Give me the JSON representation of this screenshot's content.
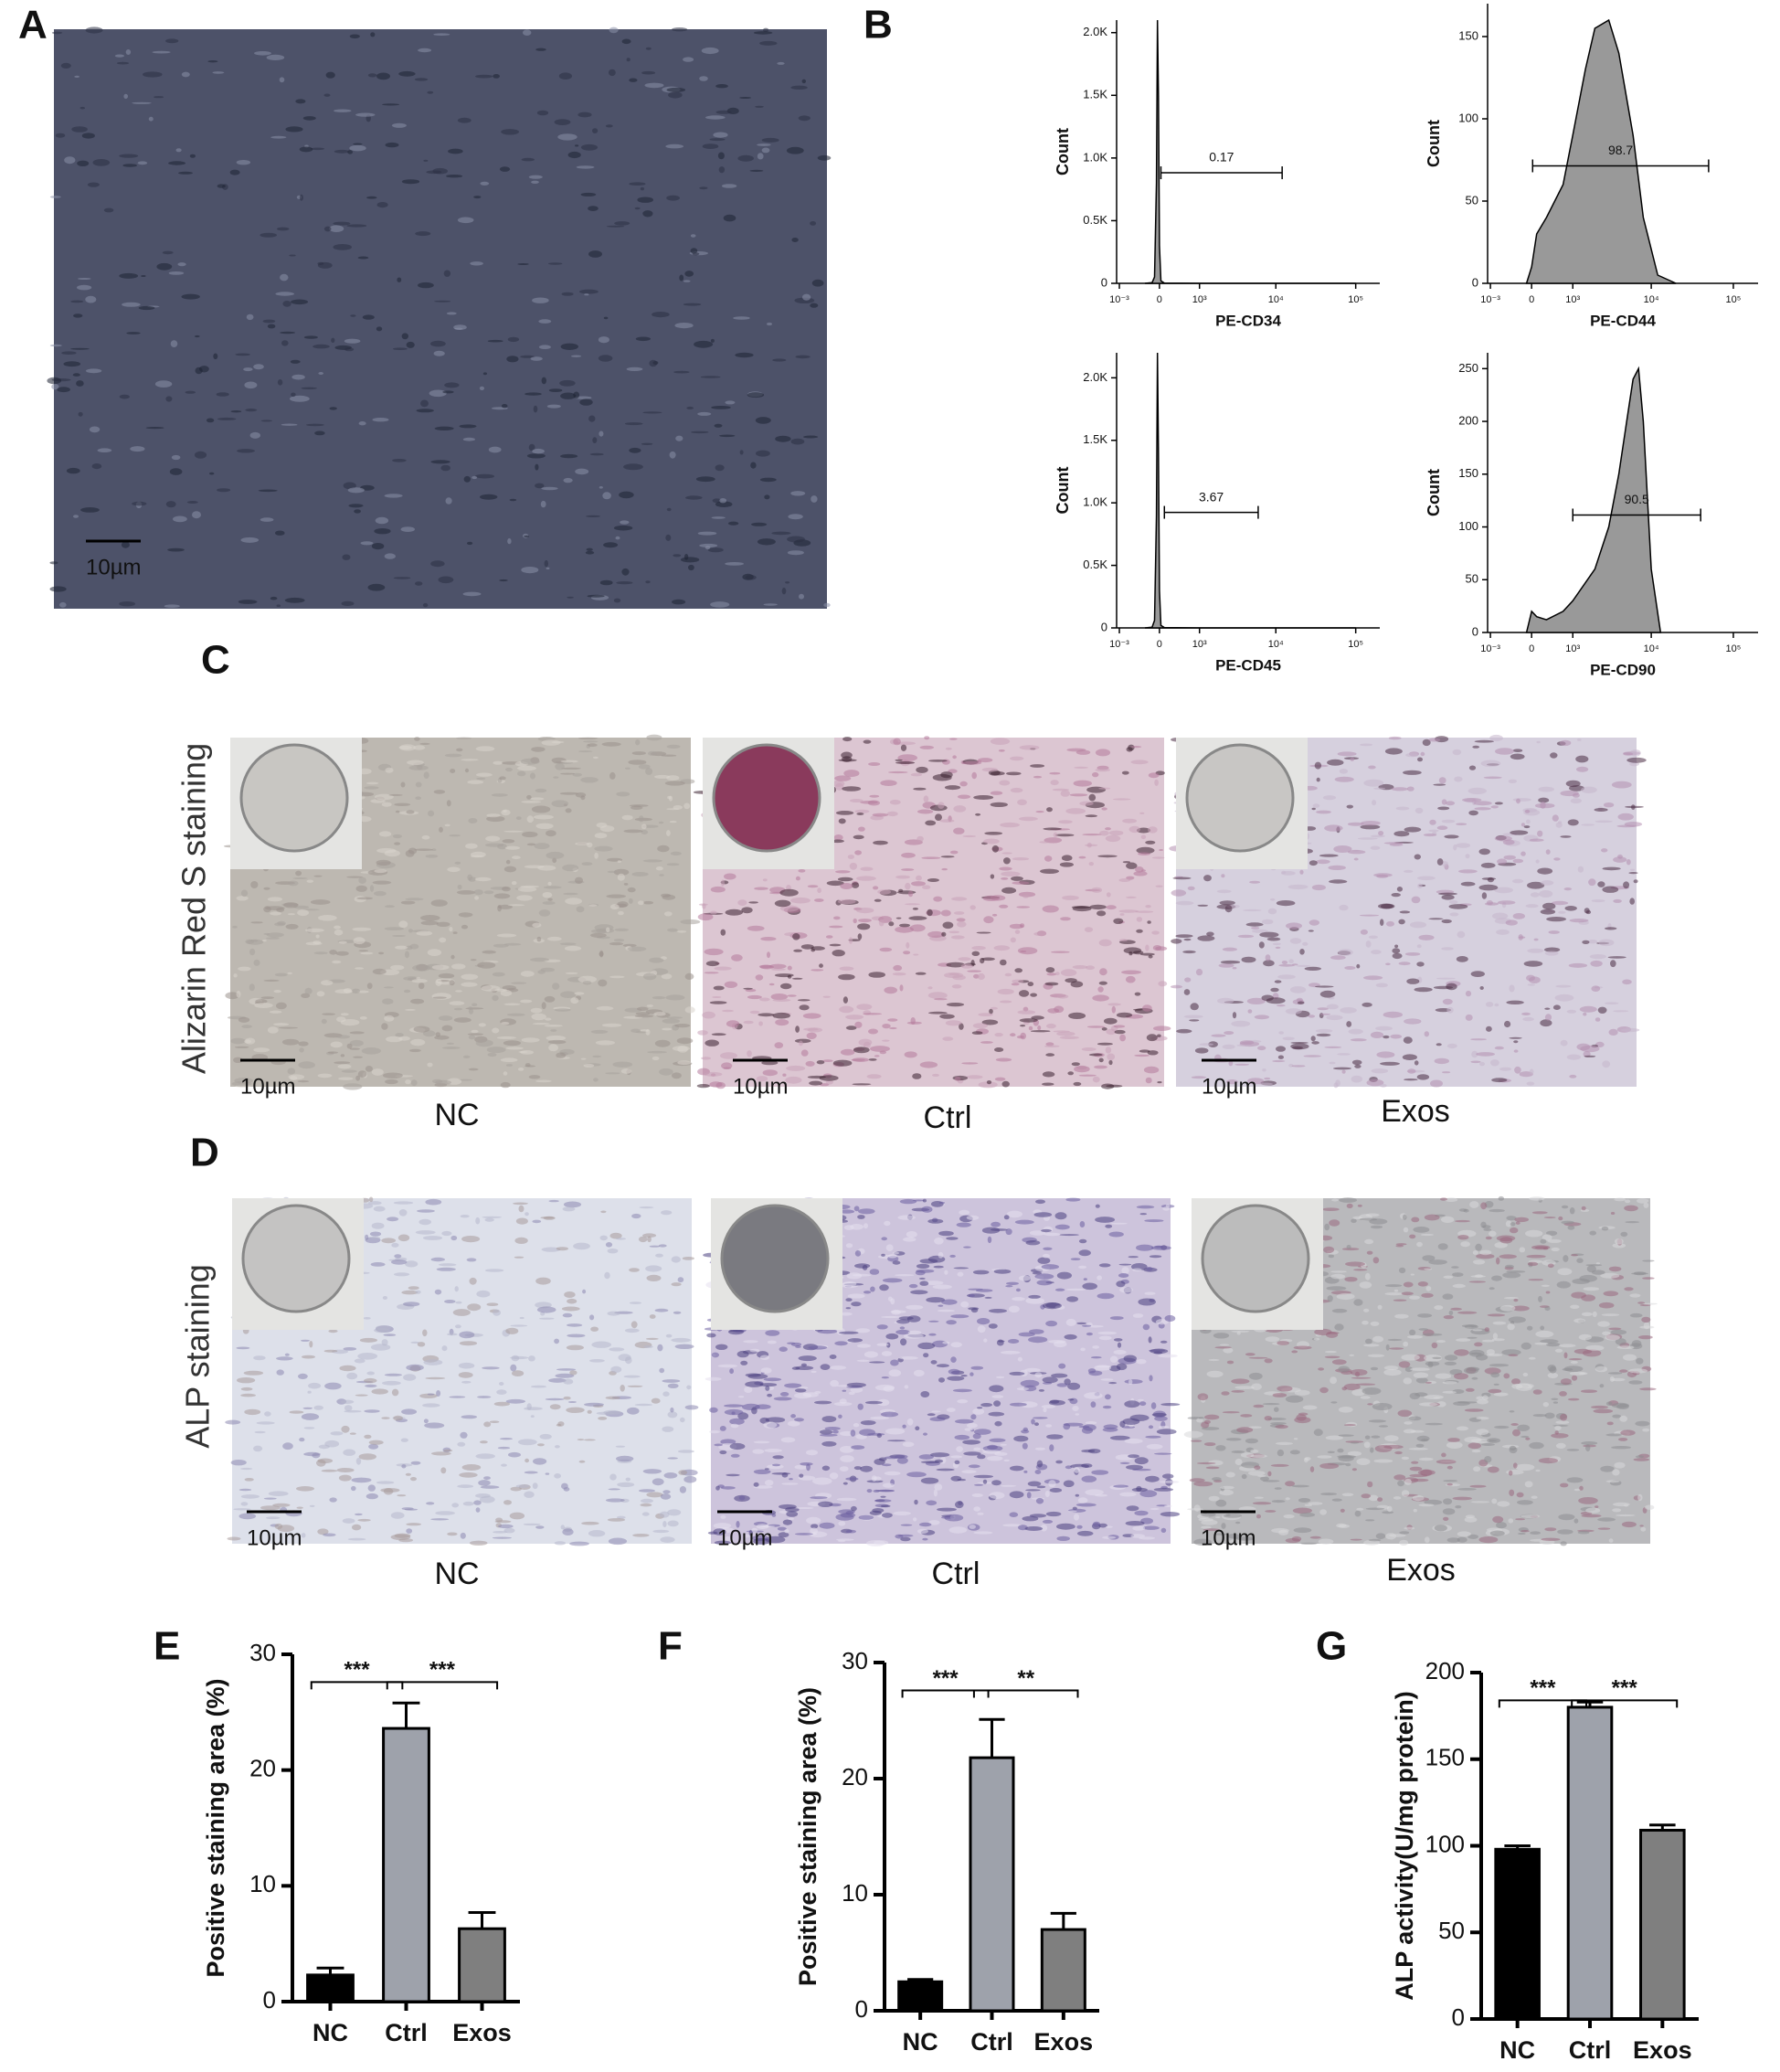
{
  "panels": {
    "panel_letters": [
      "A",
      "B",
      "C",
      "D",
      "E",
      "F",
      "G"
    ],
    "scale_bar": "10µm",
    "C": {
      "row_label": "Alizarin Red S staining",
      "groups": [
        "NC",
        "Ctrl",
        "Exos"
      ]
    },
    "D": {
      "row_label": "ALP staining",
      "groups": [
        "NC",
        "Ctrl",
        "Exos"
      ]
    }
  },
  "chart_data": [
    {
      "type": "area",
      "x_label": "PE-CD34",
      "y_label": "Count",
      "xscale": "biexponential",
      "color": "#999999",
      "x": [
        -300,
        -150,
        -100,
        -60,
        -40,
        -20,
        0,
        30,
        100,
        1000,
        100000
      ],
      "values": [
        0,
        5,
        50,
        800,
        2100,
        1500,
        300,
        20,
        2,
        0,
        0
      ],
      "xlim": [
        -1100,
        200000
      ],
      "xticks": [
        {
          "value": -1000,
          "label": "10⁻³"
        },
        0,
        {
          "value": 1000,
          "label": "10³"
        },
        {
          "value": 10000,
          "label": "10⁴"
        },
        {
          "value": 100000,
          "label": "10⁵"
        }
      ],
      "ylim": [
        0,
        2100
      ],
      "yticks": [
        0,
        {
          "value": 500,
          "label": "0.5K"
        },
        {
          "value": 1000,
          "label": "1.0K"
        },
        {
          "value": 1500,
          "label": "1.5K"
        },
        {
          "value": 2000,
          "label": "2.0K"
        }
      ],
      "gate": {
        "percent": 0.17,
        "range": [
          30,
          12000
        ]
      }
    },
    {
      "type": "area",
      "x_label": "PE-CD44",
      "y_label": "Count",
      "xscale": "biexponential",
      "color": "#999999",
      "x": [
        -100,
        0,
        100,
        300,
        700,
        1000,
        1500,
        2000,
        3000,
        4000,
        6000,
        8000,
        12000,
        20000
      ],
      "values": [
        0,
        10,
        30,
        40,
        60,
        90,
        130,
        155,
        160,
        140,
        90,
        40,
        5,
        0
      ],
      "xlim": [
        -1100,
        200000
      ],
      "xticks": [
        {
          "value": -1000,
          "label": "10⁻³"
        },
        0,
        {
          "value": 1000,
          "label": "10³"
        },
        {
          "value": 10000,
          "label": "10⁴"
        },
        {
          "value": 100000,
          "label": "10⁵"
        }
      ],
      "ylim": [
        0,
        170
      ],
      "yticks": [
        0,
        50,
        100,
        150
      ],
      "gate": {
        "percent": 98.7,
        "range": [
          20,
          50000
        ]
      }
    },
    {
      "type": "area",
      "x_label": "PE-CD45",
      "y_label": "Count",
      "xscale": "biexponential",
      "color": "#999999",
      "x": [
        -300,
        -150,
        -100,
        -60,
        -40,
        -20,
        0,
        30,
        100,
        1000,
        100000
      ],
      "values": [
        0,
        5,
        60,
        900,
        2200,
        1400,
        300,
        20,
        3,
        0,
        0
      ],
      "xlim": [
        -1100,
        200000
      ],
      "xticks": [
        {
          "value": -1000,
          "label": "10⁻³"
        },
        0,
        {
          "value": 1000,
          "label": "10³"
        },
        {
          "value": 10000,
          "label": "10⁴"
        },
        {
          "value": 100000,
          "label": "10⁵"
        }
      ],
      "ylim": [
        0,
        2200
      ],
      "yticks": [
        0,
        {
          "value": 500,
          "label": "0.5K"
        },
        {
          "value": 1000,
          "label": "1.0K"
        },
        {
          "value": 1500,
          "label": "1.5K"
        },
        {
          "value": 2000,
          "label": "2.0K"
        }
      ],
      "gate": {
        "percent": 3.67,
        "range": [
          100,
          6000
        ]
      }
    },
    {
      "type": "area",
      "x_label": "PE-CD90",
      "y_label": "Count",
      "xscale": "biexponential",
      "color": "#999999",
      "x": [
        -100,
        0,
        100,
        300,
        700,
        1000,
        2000,
        3000,
        4000,
        5000,
        6000,
        7000,
        8000,
        10000,
        13000
      ],
      "values": [
        0,
        20,
        15,
        12,
        20,
        30,
        60,
        100,
        150,
        200,
        240,
        250,
        200,
        60,
        0
      ],
      "xlim": [
        -1100,
        200000
      ],
      "xticks": [
        {
          "value": -1000,
          "label": "10⁻³"
        },
        0,
        {
          "value": 1000,
          "label": "10³"
        },
        {
          "value": 10000,
          "label": "10⁴"
        },
        {
          "value": 100000,
          "label": "10⁵"
        }
      ],
      "ylim": [
        0,
        265
      ],
      "yticks": [
        0,
        50,
        100,
        150,
        200,
        250
      ],
      "gate": {
        "percent": 90.5,
        "range": [
          1000,
          40000
        ]
      }
    },
    {
      "type": "bar",
      "y_label": "Positive staining area (%)",
      "categories": [
        "NC",
        "Ctrl",
        "Exos"
      ],
      "values": [
        2.3,
        23.6,
        6.3
      ],
      "errors": [
        0.6,
        2.2,
        1.4
      ],
      "colors": [
        "#000000",
        "#9ea2ab",
        "#7f7f7f"
      ],
      "ylim": [
        0,
        30
      ],
      "yticks": [
        0,
        10,
        20,
        30
      ],
      "significance": [
        "***",
        "***"
      ]
    },
    {
      "type": "bar",
      "y_label": "Positive staining area (%)",
      "categories": [
        "NC",
        "Ctrl",
        "Exos"
      ],
      "values": [
        2.5,
        21.8,
        7.0
      ],
      "errors": [
        0.2,
        3.3,
        1.4
      ],
      "colors": [
        "#000000",
        "#9ea2ab",
        "#7f7f7f"
      ],
      "ylim": [
        0,
        30
      ],
      "yticks": [
        0,
        10,
        20,
        30
      ],
      "significance": [
        "***",
        "**"
      ]
    },
    {
      "type": "bar",
      "y_label": "ALP activity(U/mg protein)",
      "categories": [
        "NC",
        "Ctrl",
        "Exos"
      ],
      "values": [
        98,
        180,
        109
      ],
      "errors": [
        2,
        3,
        3
      ],
      "colors": [
        "#000000",
        "#9ea2ab",
        "#7f7f7f"
      ],
      "ylim": [
        0,
        200
      ],
      "yticks": [
        0,
        50,
        100,
        150,
        200
      ],
      "significance": [
        "***",
        "***"
      ]
    }
  ]
}
